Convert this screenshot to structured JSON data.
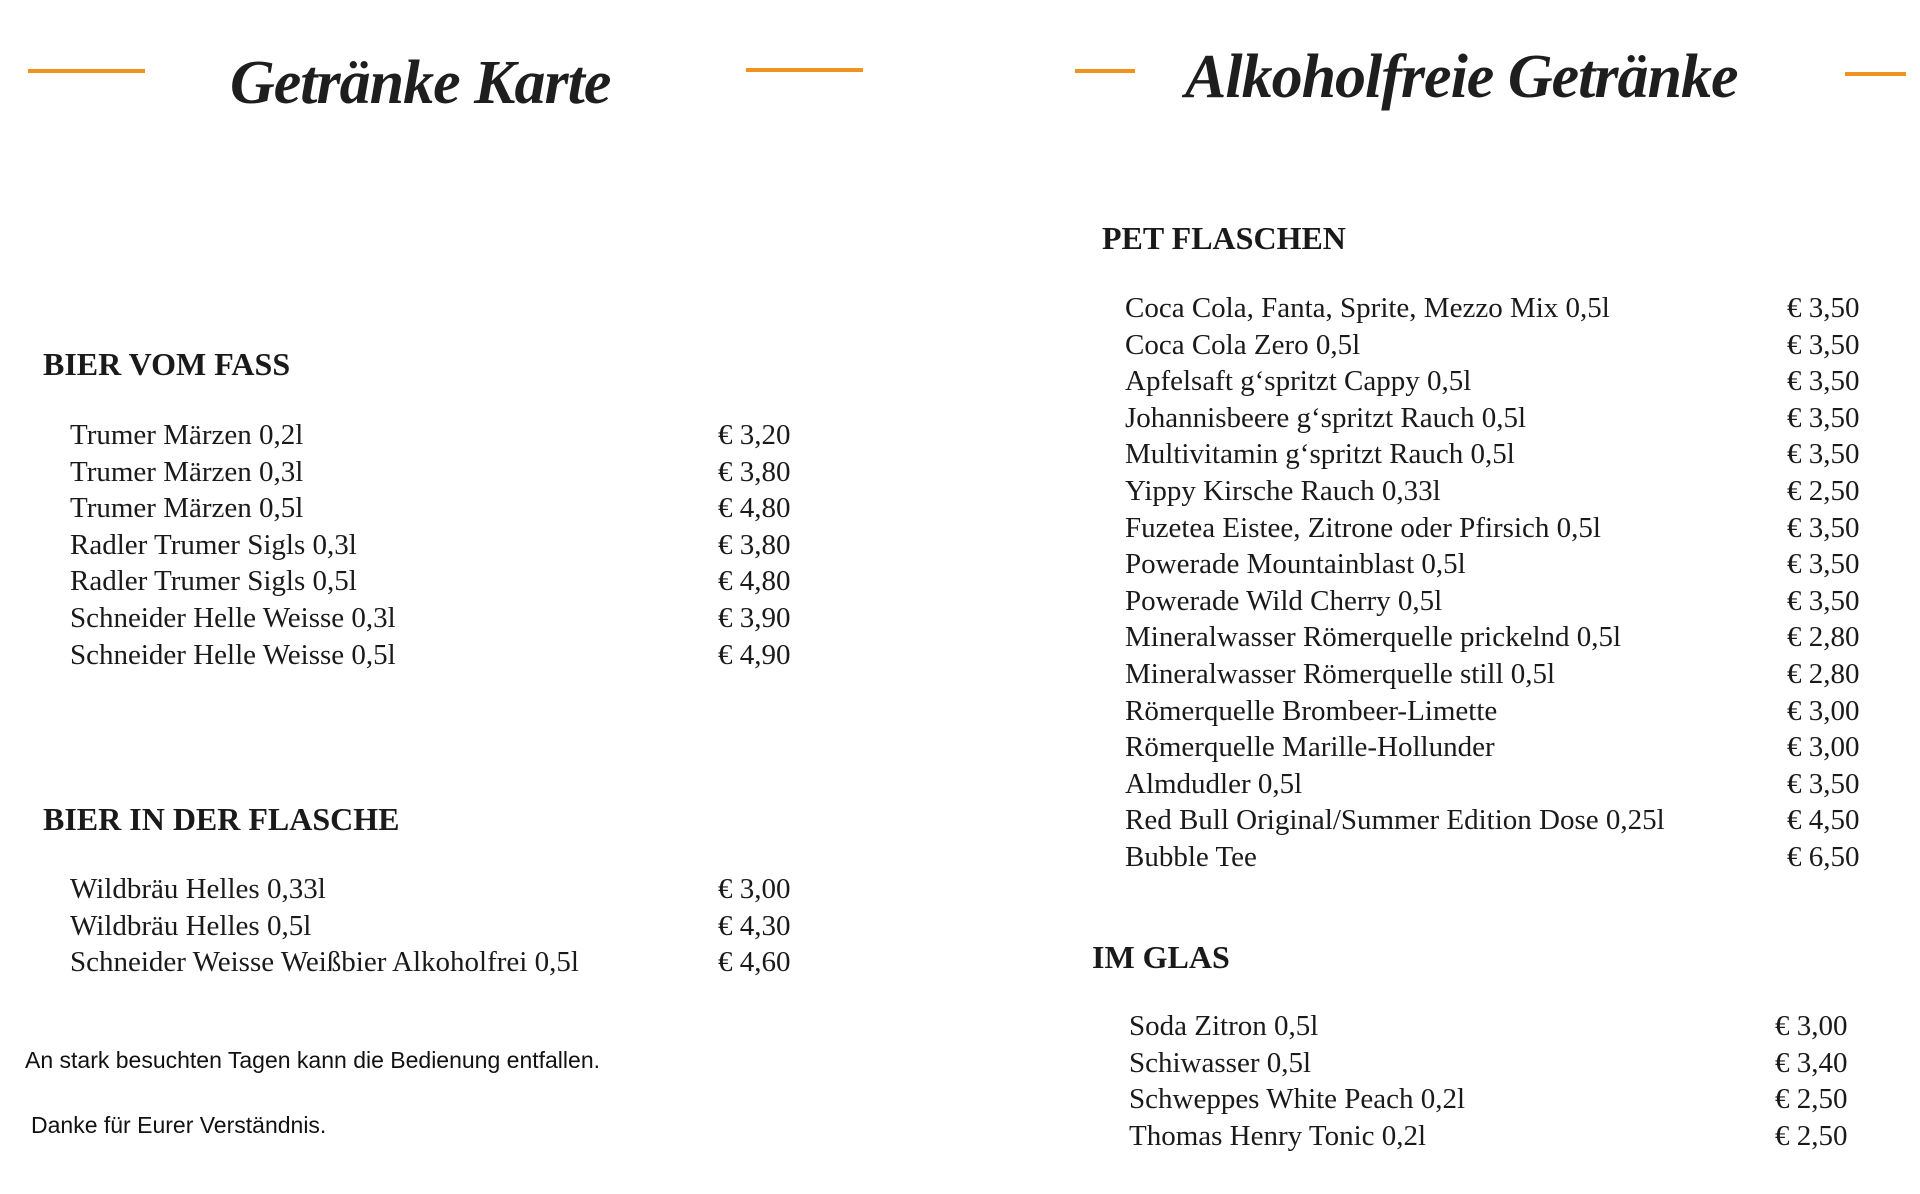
{
  "left": {
    "title": "Getränke Karte",
    "sections": [
      {
        "heading": "BIER VOM FASS",
        "items": [
          {
            "name": "Trumer Märzen 0,2l",
            "price": "€ 3,20"
          },
          {
            "name": "Trumer Märzen 0,3l",
            "price": "€ 3,80"
          },
          {
            "name": "Trumer Märzen 0,5l",
            "price": "€ 4,80"
          },
          {
            "name": "Radler Trumer Sigls 0,3l",
            "price": "€ 3,80"
          },
          {
            "name": "Radler Trumer Sigls 0,5l",
            "price": "€ 4,80"
          },
          {
            "name": "Schneider Helle Weisse 0,3l",
            "price": "€ 3,90"
          },
          {
            "name": "Schneider Helle Weisse 0,5l",
            "price": "€ 4,90"
          }
        ]
      },
      {
        "heading": "BIER IN DER FLASCHE",
        "items": [
          {
            "name": "Wildbräu Helles 0,33l",
            "price": "€ 3,00"
          },
          {
            "name": "Wildbräu Helles 0,5l",
            "price": "€ 4,30"
          },
          {
            "name": "Schneider Weisse Weißbier Alkoholfrei 0,5l",
            "price": "€ 4,60"
          }
        ]
      }
    ],
    "notes": [
      "An stark besuchten Tagen kann die Bedienung entfallen.",
      "Danke für Eurer Verständnis."
    ]
  },
  "right": {
    "title": "Alkoholfreie Getränke",
    "sections": [
      {
        "heading": "PET FLASCHEN",
        "items": [
          {
            "name": "Coca Cola, Fanta, Sprite, Mezzo Mix 0,5l",
            "price": "€ 3,50"
          },
          {
            "name": "Coca Cola Zero 0,5l",
            "price": "€ 3,50"
          },
          {
            "name": "Apfelsaft g‘spritzt Cappy 0,5l",
            "price": "€ 3,50"
          },
          {
            "name": "Johannisbeere g‘spritzt Rauch 0,5l",
            "price": "€ 3,50"
          },
          {
            "name": "Multivitamin g‘spritzt Rauch 0,5l",
            "price": "€ 3,50"
          },
          {
            "name": "Yippy Kirsche Rauch 0,33l",
            "price": "€ 2,50"
          },
          {
            "name": "Fuzetea Eistee, Zitrone oder Pfirsich 0,5l",
            "price": "€ 3,50"
          },
          {
            "name": "Powerade Mountainblast 0,5l",
            "price": "€ 3,50"
          },
          {
            "name": "Powerade Wild Cherry 0,5l",
            "price": "€ 3,50"
          },
          {
            "name": "Mineralwasser Römerquelle prickelnd 0,5l",
            "price": "€ 2,80"
          },
          {
            "name": "Mineralwasser Römerquelle still 0,5l",
            "price": "€ 2,80"
          },
          {
            "name": "Römerquelle Brombeer-Limette",
            "price": "€ 3,00"
          },
          {
            "name": "Römerquelle Marille-Hollunder",
            "price": "€ 3,00"
          },
          {
            "name": "Almdudler 0,5l",
            "price": "€ 3,50"
          },
          {
            "name": "Red Bull Original/Summer Edition Dose 0,25l",
            "price": "€ 4,50"
          },
          {
            "name": "Bubble Tee",
            "price": "€ 6,50"
          }
        ]
      },
      {
        "heading": "IM GLAS",
        "items": [
          {
            "name": "Soda Zitron 0,5l",
            "price": "€ 3,00"
          },
          {
            "name": "Schiwasser 0,5l",
            "price": "€ 3,40"
          },
          {
            "name": "Schweppes White Peach 0,2l",
            "price": "€ 2,50"
          },
          {
            "name": "Thomas Henry Tonic 0,2l",
            "price": "€ 2,50"
          }
        ]
      }
    ]
  },
  "colors": {
    "accent": "#f0931e",
    "text": "#1a1a1a"
  }
}
